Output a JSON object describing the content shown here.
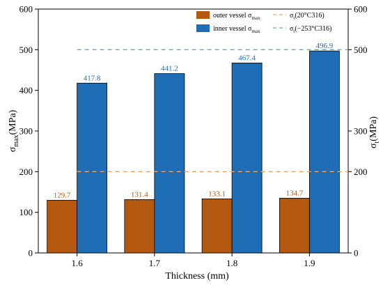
{
  "chart_data": {
    "type": "bar",
    "categories": [
      "1.6",
      "1.7",
      "1.8",
      "1.9"
    ],
    "series": [
      {
        "name": "outer vessel σmax",
        "name_main": "outer vessel σ",
        "name_sub": "max",
        "values": [
          129.7,
          131.4,
          133.1,
          134.7
        ],
        "labels": [
          "129.7",
          "131.4",
          "133.1",
          "134.7"
        ],
        "color": "#b5580f"
      },
      {
        "name": "inner vessel σmax",
        "name_main": "inner vessel σ",
        "name_sub": "max",
        "values": [
          417.8,
          441.2,
          467.4,
          496.9
        ],
        "labels": [
          "417.8",
          "441.2",
          "467.4",
          "496.9"
        ],
        "color": "#1f6db5"
      }
    ],
    "reference_lines": [
      {
        "name": "σt(20°C316)",
        "name_main": "σ",
        "name_sub": "t",
        "name_rest": "(20°C316)",
        "value": 200,
        "axis": "right",
        "color": "#f4a262",
        "style": "dashed"
      },
      {
        "name": "σt(−253°C316)",
        "name_main": "σ",
        "name_sub": "t",
        "name_rest": "(−253°C316)",
        "value": 500,
        "axis": "right",
        "color": "#4fb0e0",
        "style": "dashed"
      }
    ],
    "xlabel": "Thickness (mm)",
    "ylabel": "σmax(MPa)",
    "ylabel_main": "σ",
    "ylabel_sub": "max",
    "ylabel_rest": "(MPa)",
    "y2label": "σt(MPa)",
    "y2label_main": "σ",
    "y2label_sub": "t",
    "y2label_rest": "(MPa)",
    "ylim": [
      0,
      600
    ],
    "yticks": [
      0,
      100,
      200,
      300,
      400,
      500,
      600
    ],
    "y2lim": [
      0,
      600
    ],
    "y2ticks": [
      0,
      200,
      300,
      500,
      600
    ],
    "grid": false,
    "legend_position": "top-right"
  }
}
